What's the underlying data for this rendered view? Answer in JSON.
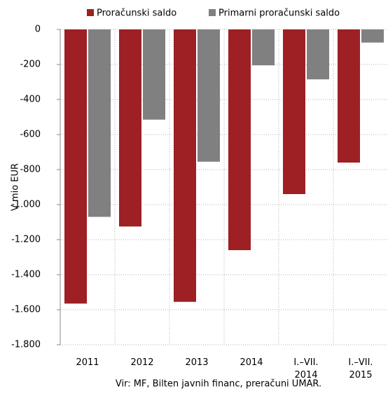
{
  "chart_data": {
    "type": "bar",
    "categories": [
      "2011",
      "2012",
      "2013",
      "2014",
      "I.–VII. 2014",
      "I.–VII. 2015"
    ],
    "series": [
      {
        "name": "Proračunski saldo",
        "color": "#9e1f24",
        "values": [
          -1565,
          -1125,
          -1555,
          -1260,
          -940,
          -760
        ]
      },
      {
        "name": "Primarni proračunski saldo",
        "color": "#808080",
        "values": [
          -1070,
          -515,
          -755,
          -205,
          -285,
          -75
        ]
      }
    ],
    "ylabel": "V mio EUR",
    "ylim": [
      -1800,
      0
    ],
    "yticks": [
      0,
      -200,
      -400,
      -600,
      -800,
      {
        "value": -1000,
        "label": "-1.000"
      },
      {
        "value": -1200,
        "label": "-1.200"
      },
      {
        "value": -1400,
        "label": "-1.400"
      },
      {
        "value": -1600,
        "label": "-1.600"
      },
      {
        "value": -1800,
        "label": "-1.800"
      }
    ],
    "grid": true,
    "legend": "top",
    "source": "Vir: MF, Bilten javnih financ, preračuni UMAR."
  }
}
